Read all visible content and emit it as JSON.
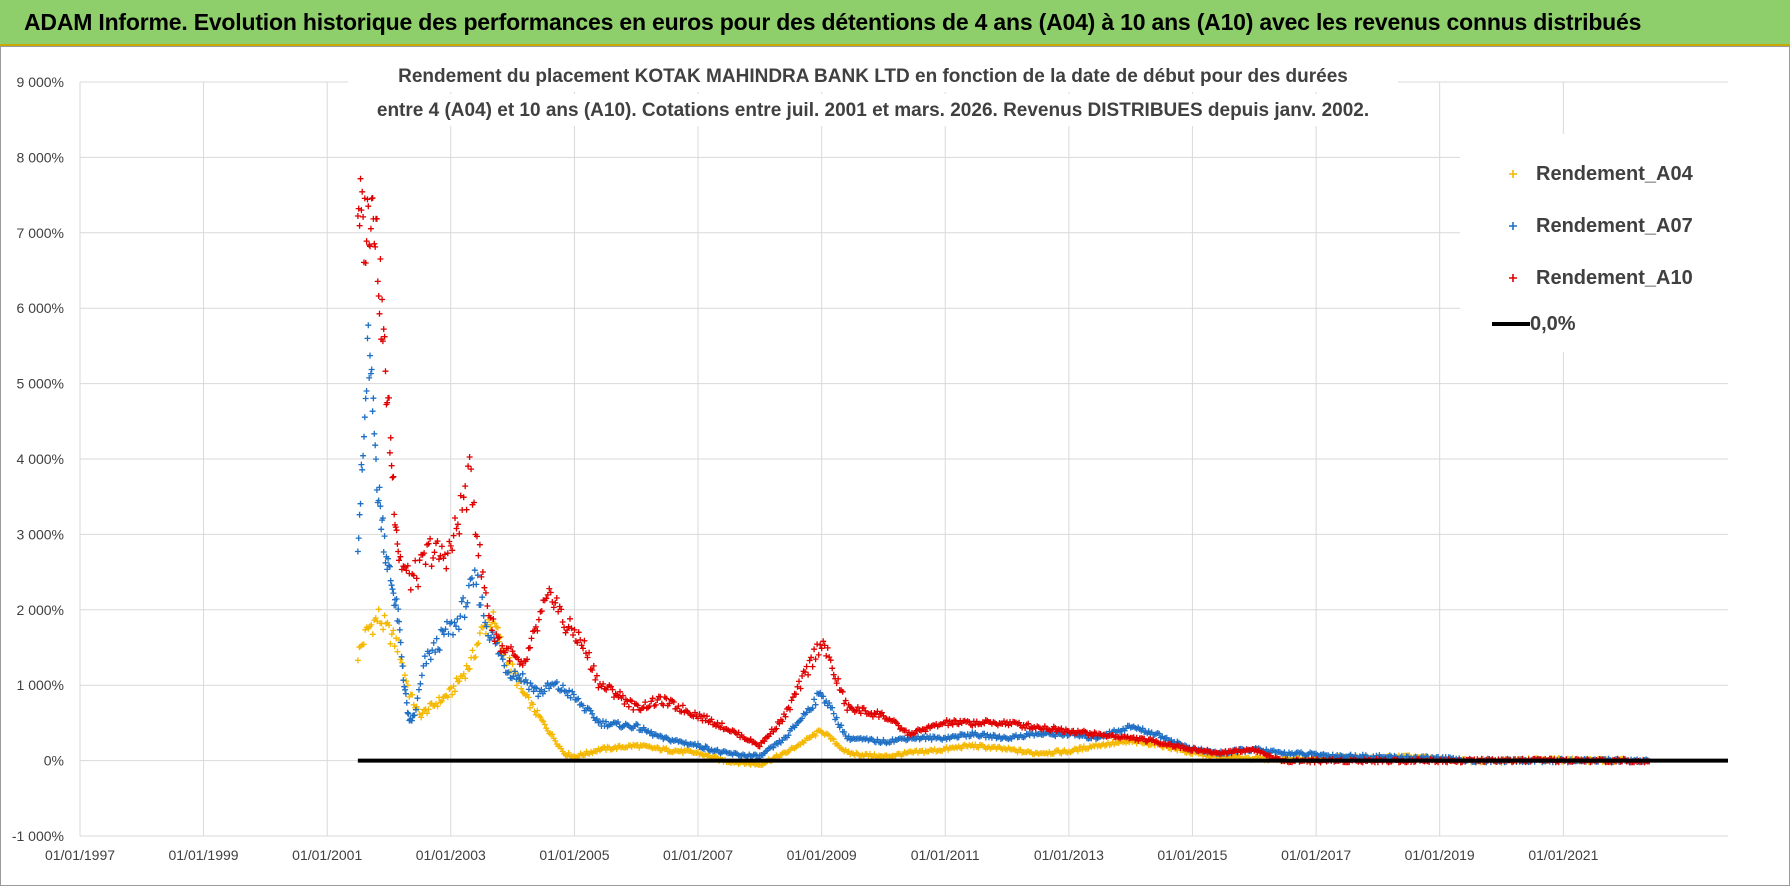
{
  "banner": {
    "title": "ADAM Informe. Evolution historique des performances en euros pour des détentions de 4 ans (A04) à 10 ans (A10) avec les revenus connus distribués"
  },
  "colors": {
    "banner": "#8fcf6b",
    "A04": "#f5b800",
    "A07": "#1f6fc4",
    "A10": "#e00000",
    "zero": "#000000",
    "grid": "#d9d9d9"
  },
  "chart_data": {
    "type": "scatter",
    "title_lines": [
      "Rendement du placement KOTAK MAHINDRA BANK LTD en fonction de la date de début pour des durées",
      "entre 4 (A04) et 10 ans (A10). Cotations entre juil. 2001 et mars. 2026. Revenus DISTRIBUES depuis janv. 2002."
    ],
    "xlabel": "",
    "ylabel": "",
    "x_ticks": [
      "01/01/1997",
      "01/01/1999",
      "01/01/2001",
      "01/01/2003",
      "01/01/2005",
      "01/01/2007",
      "01/01/2009",
      "01/01/2011",
      "01/01/2013",
      "01/01/2015",
      "01/01/2017",
      "01/01/2019",
      "01/01/2021"
    ],
    "xlim": [
      "1997-01-01",
      "2023-09-01"
    ],
    "y_ticks": [
      -1000,
      0,
      1000,
      2000,
      3000,
      4000,
      5000,
      6000,
      7000,
      8000,
      9000
    ],
    "y_tick_labels": [
      "-1 000%",
      "0%",
      "1 000%",
      "2 000%",
      "3 000%",
      "4 000%",
      "5 000%",
      "6 000%",
      "7 000%",
      "8 000%",
      "9 000%"
    ],
    "ylim": [
      -1000,
      9000
    ],
    "unit": "%",
    "grid": true,
    "legend_position": "top-right",
    "series": [
      {
        "name": "Rendement_A04",
        "marker": "+",
        "points": [
          [
            "2001-07-01",
            1400
          ],
          [
            "2001-09-01",
            1750
          ],
          [
            "2001-11-01",
            1900
          ],
          [
            "2002-01-01",
            1700
          ],
          [
            "2002-03-01",
            1500
          ],
          [
            "2002-05-01",
            900
          ],
          [
            "2002-07-01",
            600
          ],
          [
            "2002-09-01",
            700
          ],
          [
            "2002-11-01",
            800
          ],
          [
            "2003-01-01",
            900
          ],
          [
            "2003-03-01",
            1100
          ],
          [
            "2003-05-01",
            1300
          ],
          [
            "2003-07-01",
            1700
          ],
          [
            "2003-09-01",
            1900
          ],
          [
            "2003-11-01",
            1500
          ],
          [
            "2004-01-01",
            1200
          ],
          [
            "2004-03-01",
            900
          ],
          [
            "2004-05-01",
            700
          ],
          [
            "2004-07-01",
            500
          ],
          [
            "2004-09-01",
            300
          ],
          [
            "2004-11-01",
            100
          ],
          [
            "2005-01-01",
            50
          ],
          [
            "2005-06-01",
            150
          ],
          [
            "2006-01-01",
            200
          ],
          [
            "2006-06-01",
            150
          ],
          [
            "2007-01-01",
            100
          ],
          [
            "2007-06-01",
            0
          ],
          [
            "2008-01-01",
            -50
          ],
          [
            "2008-06-01",
            100
          ],
          [
            "2009-01-01",
            400
          ],
          [
            "2009-06-01",
            100
          ],
          [
            "2010-01-01",
            50
          ],
          [
            "2010-06-01",
            100
          ],
          [
            "2011-01-01",
            150
          ],
          [
            "2011-06-01",
            200
          ],
          [
            "2012-01-01",
            150
          ],
          [
            "2012-06-01",
            100
          ],
          [
            "2013-01-01",
            120
          ],
          [
            "2013-06-01",
            200
          ],
          [
            "2014-01-01",
            250
          ],
          [
            "2014-06-01",
            220
          ],
          [
            "2015-01-01",
            100
          ],
          [
            "2015-06-01",
            50
          ],
          [
            "2016-01-01",
            30
          ],
          [
            "2016-06-01",
            20
          ],
          [
            "2017-01-01",
            20
          ],
          [
            "2017-06-01",
            40
          ],
          [
            "2018-01-01",
            30
          ],
          [
            "2018-06-01",
            50
          ],
          [
            "2019-01-01",
            20
          ],
          [
            "2019-06-01",
            0
          ],
          [
            "2020-01-01",
            -10
          ],
          [
            "2020-06-01",
            20
          ],
          [
            "2021-01-01",
            10
          ],
          [
            "2021-06-01",
            0
          ],
          [
            "2022-01-01",
            0
          ]
        ]
      },
      {
        "name": "Rendement_A07",
        "marker": "+",
        "points": [
          [
            "2001-07-01",
            3000
          ],
          [
            "2001-08-01",
            4000
          ],
          [
            "2001-09-01",
            5500
          ],
          [
            "2001-10-01",
            4500
          ],
          [
            "2001-11-01",
            3500
          ],
          [
            "2001-12-01",
            3000
          ],
          [
            "2002-01-01",
            2500
          ],
          [
            "2002-02-01",
            2200
          ],
          [
            "2002-03-01",
            1800
          ],
          [
            "2002-04-01",
            1000
          ],
          [
            "2002-05-01",
            500
          ],
          [
            "2002-06-01",
            600
          ],
          [
            "2002-08-01",
            1300
          ],
          [
            "2002-10-01",
            1500
          ],
          [
            "2002-12-01",
            1700
          ],
          [
            "2003-02-01",
            1800
          ],
          [
            "2003-04-01",
            2100
          ],
          [
            "2003-06-01",
            2400
          ],
          [
            "2003-08-01",
            1800
          ],
          [
            "2003-10-01",
            1500
          ],
          [
            "2003-12-01",
            1200
          ],
          [
            "2004-03-01",
            1100
          ],
          [
            "2004-06-01",
            900
          ],
          [
            "2004-09-01",
            1000
          ],
          [
            "2004-12-01",
            900
          ],
          [
            "2005-03-01",
            700
          ],
          [
            "2005-06-01",
            500
          ],
          [
            "2006-01-01",
            450
          ],
          [
            "2006-06-01",
            300
          ],
          [
            "2007-01-01",
            200
          ],
          [
            "2007-06-01",
            100
          ],
          [
            "2008-01-01",
            50
          ],
          [
            "2008-06-01",
            300
          ],
          [
            "2009-01-01",
            900
          ],
          [
            "2009-06-01",
            300
          ],
          [
            "2010-01-01",
            250
          ],
          [
            "2010-06-01",
            300
          ],
          [
            "2011-01-01",
            300
          ],
          [
            "2011-06-01",
            350
          ],
          [
            "2012-01-01",
            300
          ],
          [
            "2012-06-01",
            350
          ],
          [
            "2013-01-01",
            350
          ],
          [
            "2013-06-01",
            300
          ],
          [
            "2014-01-01",
            450
          ],
          [
            "2014-06-01",
            350
          ],
          [
            "2015-01-01",
            150
          ],
          [
            "2015-06-01",
            100
          ],
          [
            "2016-01-01",
            150
          ],
          [
            "2016-06-01",
            100
          ],
          [
            "2017-01-01",
            80
          ],
          [
            "2017-06-01",
            60
          ],
          [
            "2018-01-01",
            50
          ],
          [
            "2018-06-01",
            40
          ],
          [
            "2019-01-01",
            30
          ],
          [
            "2019-06-01",
            0
          ],
          [
            "2020-01-01",
            0
          ],
          [
            "2020-06-01",
            0
          ],
          [
            "2021-01-01",
            0
          ],
          [
            "2021-06-01",
            0
          ],
          [
            "2022-01-01",
            0
          ],
          [
            "2022-06-01",
            0
          ]
        ]
      },
      {
        "name": "Rendement_A10",
        "marker": "+",
        "points": [
          [
            "2001-07-01",
            7500
          ],
          [
            "2001-08-01",
            7000
          ],
          [
            "2001-09-01",
            7200
          ],
          [
            "2001-10-01",
            7600
          ],
          [
            "2001-11-01",
            6500
          ],
          [
            "2001-12-01",
            5500
          ],
          [
            "2002-01-01",
            4500
          ],
          [
            "2002-02-01",
            3500
          ],
          [
            "2002-03-01",
            2700
          ],
          [
            "2002-05-01",
            2400
          ],
          [
            "2002-07-01",
            2500
          ],
          [
            "2002-09-01",
            2800
          ],
          [
            "2002-11-01",
            2700
          ],
          [
            "2003-01-01",
            2800
          ],
          [
            "2003-03-01",
            3300
          ],
          [
            "2003-05-01",
            3800
          ],
          [
            "2003-07-01",
            2500
          ],
          [
            "2003-09-01",
            1800
          ],
          [
            "2003-11-01",
            1500
          ],
          [
            "2004-01-01",
            1400
          ],
          [
            "2004-03-01",
            1200
          ],
          [
            "2004-05-01",
            1600
          ],
          [
            "2004-07-01",
            2000
          ],
          [
            "2004-09-01",
            2200
          ],
          [
            "2004-11-01",
            1800
          ],
          [
            "2005-01-01",
            1700
          ],
          [
            "2005-03-01",
            1500
          ],
          [
            "2005-06-01",
            1000
          ],
          [
            "2005-09-01",
            900
          ],
          [
            "2006-01-01",
            700
          ],
          [
            "2006-06-01",
            800
          ],
          [
            "2007-01-01",
            600
          ],
          [
            "2007-06-01",
            450
          ],
          [
            "2008-01-01",
            200
          ],
          [
            "2008-06-01",
            600
          ],
          [
            "2009-01-01",
            1600
          ],
          [
            "2009-06-01",
            700
          ],
          [
            "2010-01-01",
            600
          ],
          [
            "2010-06-01",
            350
          ],
          [
            "2011-01-01",
            500
          ],
          [
            "2011-06-01",
            500
          ],
          [
            "2012-01-01",
            500
          ],
          [
            "2012-06-01",
            450
          ],
          [
            "2013-01-01",
            400
          ],
          [
            "2013-06-01",
            350
          ],
          [
            "2014-01-01",
            300
          ],
          [
            "2014-06-01",
            250
          ],
          [
            "2015-01-01",
            150
          ],
          [
            "2015-06-01",
            100
          ],
          [
            "2016-01-01",
            150
          ],
          [
            "2016-06-01",
            0
          ],
          [
            "2017-01-01",
            0
          ],
          [
            "2017-06-01",
            0
          ],
          [
            "2018-01-01",
            0
          ],
          [
            "2018-06-01",
            0
          ],
          [
            "2019-01-01",
            0
          ],
          [
            "2019-06-01",
            0
          ],
          [
            "2020-01-01",
            0
          ],
          [
            "2020-06-01",
            0
          ],
          [
            "2021-01-01",
            0
          ],
          [
            "2021-06-01",
            0
          ],
          [
            "2022-01-01",
            0
          ],
          [
            "2022-06-01",
            0
          ]
        ]
      }
    ],
    "reference_line": {
      "name": "0,0%",
      "y": 0,
      "x_start": "2001-07-01",
      "x_end": "2023-09-01"
    }
  }
}
